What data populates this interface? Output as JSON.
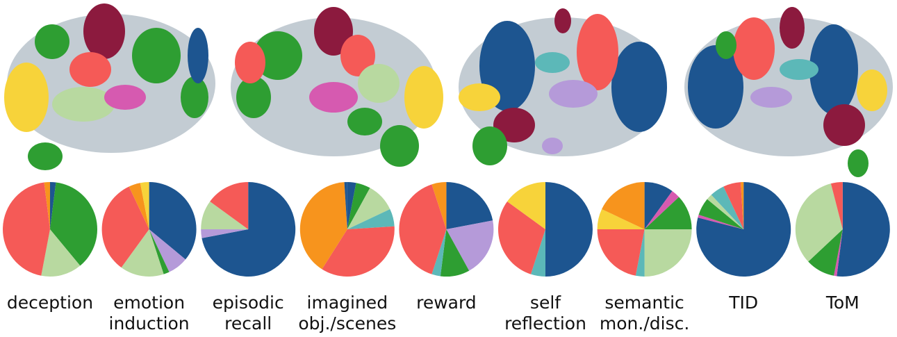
{
  "chart_data": [
    {
      "type": "pie",
      "title": [
        "deception"
      ],
      "values": [
        2,
        37,
        14,
        45,
        2
      ],
      "colors": [
        "#1d5590",
        "#2e9e32",
        "#b8d9a0",
        "#f55a57",
        "#f7941d"
      ]
    },
    {
      "type": "pie",
      "title": [
        "emotion",
        "induction"
      ],
      "values": [
        36,
        7,
        2,
        15,
        33,
        4,
        3
      ],
      "colors": [
        "#1d5590",
        "#b59ad9",
        "#2e9e32",
        "#b8d9a0",
        "#f55a57",
        "#f7941d",
        "#f7d33a"
      ]
    },
    {
      "type": "pie",
      "title": [
        "episodic",
        "recall"
      ],
      "values": [
        72,
        3,
        10,
        15
      ],
      "colors": [
        "#1d5590",
        "#b59ad9",
        "#b8d9a0",
        "#f55a57"
      ]
    },
    {
      "type": "pie",
      "title": [
        "imagined",
        "obj./scenes"
      ],
      "values": [
        3,
        5,
        10,
        6,
        35,
        40,
        1
      ],
      "colors": [
        "#1d5590",
        "#2e9e32",
        "#b8d9a0",
        "#5cb8b8",
        "#f55a57",
        "#f7941d",
        "#1d5590"
      ]
    },
    {
      "type": "pie",
      "title": [
        "reward"
      ],
      "values": [
        22,
        20,
        10,
        3,
        40,
        5
      ],
      "colors": [
        "#1d5590",
        "#b59ad9",
        "#2e9e32",
        "#5cb8b8",
        "#f55a57",
        "#f7941d"
      ]
    },
    {
      "type": "pie",
      "title": [
        "self",
        "reflection"
      ],
      "values": [
        50,
        5,
        30,
        15
      ],
      "colors": [
        "#1d5590",
        "#5cb8b8",
        "#f55a57",
        "#f7d33a"
      ]
    },
    {
      "type": "pie",
      "title": [
        "semantic",
        "mon./disc."
      ],
      "values": [
        10,
        3,
        12,
        25,
        3,
        22,
        7,
        18
      ],
      "colors": [
        "#1d5590",
        "#d65ab0",
        "#2e9e32",
        "#b8d9a0",
        "#5cb8b8",
        "#f55a57",
        "#f7d33a",
        "#f7941d"
      ]
    },
    {
      "type": "pie",
      "title": [
        "TID"
      ],
      "values": [
        79,
        1,
        6,
        2,
        5,
        6,
        1
      ],
      "colors": [
        "#1d5590",
        "#d65ab0",
        "#2e9e32",
        "#b8d9a0",
        "#5cb8b8",
        "#f55a57",
        "#f7941d"
      ]
    },
    {
      "type": "pie",
      "title": [
        "ToM"
      ],
      "values": [
        52,
        1,
        10,
        33,
        4
      ],
      "colors": [
        "#1d5590",
        "#d65ab0",
        "#2e9e32",
        "#b8d9a0",
        "#f55a57"
      ]
    }
  ]
}
